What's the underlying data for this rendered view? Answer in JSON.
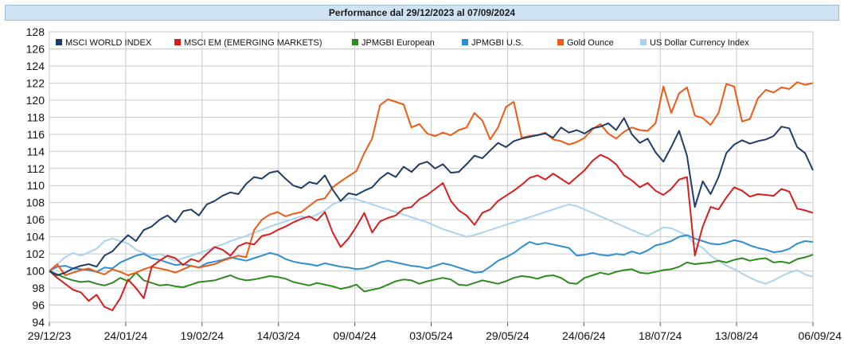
{
  "chart_data": {
    "type": "line",
    "title": "Performance dal 29/12/2023 al 07/09/2024",
    "xlabel": "",
    "ylabel": "",
    "ylim": [
      94,
      128
    ],
    "y_ticks": [
      94,
      96,
      98,
      100,
      102,
      104,
      106,
      108,
      110,
      112,
      114,
      116,
      118,
      120,
      122,
      124,
      126,
      128
    ],
    "x_ticks": [
      "29/12/23",
      "24/01/24",
      "19/02/24",
      "14/03/24",
      "09/04/24",
      "03/05/24",
      "29/05/24",
      "24/06/24",
      "18/07/24",
      "13/08/24",
      "06/09/24"
    ],
    "legend_position": "top-left",
    "grid": true,
    "series": [
      {
        "name": "MSCI WORLD INDEX",
        "color": "#1f3d6b",
        "values": [
          100,
          99.5,
          99.8,
          100.3,
          100.6,
          100.8,
          100.5,
          101.8,
          102.3,
          103.3,
          104.2,
          103.5,
          104.8,
          105.2,
          106,
          106.5,
          105.7,
          107,
          107.2,
          106.5,
          107.8,
          108.2,
          108.8,
          109.2,
          109,
          110.2,
          111,
          110.8,
          111.5,
          111.7,
          110.8,
          110,
          109.7,
          110.4,
          110.2,
          111.2,
          109.5,
          108.2,
          109.1,
          108.9,
          109.4,
          109.8,
          110.8,
          111.5,
          111,
          112.2,
          111.6,
          112.5,
          112.8,
          112,
          112.5,
          111.5,
          111.6,
          112.5,
          113.5,
          113.2,
          114.1,
          115,
          114.5,
          115.2,
          115.5,
          115.7,
          115.9,
          116.1,
          115.6,
          116.8,
          116.2,
          116.5,
          116.1,
          116.7,
          116.9,
          117.3,
          116.5,
          117.9,
          116,
          115,
          115.5,
          113.9,
          112.8,
          114.5,
          116.4,
          113.5,
          107.5,
          110.5,
          109,
          111,
          113.8,
          114.8,
          115.3,
          114.9,
          115.2,
          115.4,
          115.8,
          116.9,
          116.7,
          114.5,
          113.8,
          111.8
        ]
      },
      {
        "name": "MSCI EM (EMERGING MARKETS)",
        "color": "#d81d1d",
        "values": [
          100,
          99.2,
          98.5,
          97.8,
          97.5,
          96.5,
          97.2,
          95.8,
          95.4,
          96.8,
          99,
          98,
          96.8,
          100.5,
          101.2,
          101.8,
          101.5,
          100.7,
          101.4,
          101.1,
          102,
          102.8,
          102.5,
          101.8,
          102.9,
          103.3,
          103.1,
          104.1,
          104.3,
          104.8,
          105.2,
          105.7,
          106.1,
          106.4,
          105.9,
          106.9,
          104.5,
          102.8,
          103.8,
          105.2,
          106.8,
          104.5,
          105.8,
          106.2,
          106.5,
          107.3,
          107.5,
          108.4,
          108.9,
          109.6,
          110.3,
          108.2,
          107.1,
          106.5,
          105.4,
          106.8,
          107.2,
          108.2,
          108.8,
          109.4,
          110.1,
          110.9,
          111.2,
          110.7,
          111.4,
          110.8,
          110.2,
          111,
          111.8,
          112.9,
          113.6,
          113.2,
          112.5,
          111.2,
          110.6,
          109.8,
          110.3,
          109.4,
          108.9,
          109.6,
          110.7,
          111,
          101.8,
          105.2,
          107.5,
          107.2,
          108.6,
          109.8,
          109.4,
          108.7,
          109,
          108.9,
          108.8,
          109.6,
          109.3,
          107.3,
          107.1,
          106.8
        ]
      },
      {
        "name": "JPMGBI European",
        "color": "#2e8b1f",
        "values": [
          100,
          99.6,
          99.2,
          98.9,
          98.7,
          98.8,
          98.5,
          98.3,
          98.6,
          99.2,
          98.8,
          99.8,
          98.9,
          98.6,
          98.3,
          98.4,
          98.2,
          98.1,
          98.4,
          98.7,
          98.8,
          98.9,
          99.2,
          99.5,
          99.1,
          98.9,
          99,
          99.2,
          99.4,
          99.3,
          99.1,
          98.7,
          98.5,
          98.3,
          98.6,
          98.4,
          98.2,
          97.9,
          98.1,
          98.4,
          97.6,
          97.8,
          98,
          98.4,
          98.8,
          99,
          98.9,
          98.5,
          98.8,
          99,
          99.2,
          99,
          98.4,
          98.3,
          98.6,
          98.9,
          98.7,
          98.5,
          98.8,
          99.2,
          99.4,
          99.3,
          99.1,
          99.4,
          99.5,
          99.2,
          98.6,
          98.5,
          99.2,
          99.5,
          99.8,
          99.6,
          99.9,
          100.1,
          100.2,
          99.8,
          99.7,
          99.9,
          100.1,
          100.2,
          100.5,
          101,
          100.8,
          100.9,
          101,
          101.2,
          101,
          101.3,
          101.5,
          101.2,
          101.4,
          101.5,
          101,
          101.1,
          100.9,
          101.4,
          101.6,
          101.9
        ]
      },
      {
        "name": "JPMGBI U.S.",
        "color": "#2f8fd0",
        "values": [
          100,
          100.5,
          100.6,
          100.3,
          100.2,
          100.1,
          99.9,
          100.4,
          100.3,
          101,
          101.4,
          101.8,
          102,
          101.5,
          101.3,
          101,
          100.7,
          100.8,
          100.6,
          100.4,
          100.9,
          101.1,
          101.3,
          101.6,
          101.4,
          101.2,
          101.5,
          101.8,
          102.1,
          101.9,
          101.4,
          101.1,
          100.9,
          100.8,
          100.6,
          100.9,
          100.7,
          100.5,
          100.4,
          100.2,
          100.3,
          100.6,
          101,
          101.2,
          101,
          100.8,
          100.6,
          100.5,
          100.3,
          100.6,
          100.9,
          100.7,
          100.4,
          100.1,
          99.8,
          99.9,
          100.5,
          101.2,
          101.6,
          102.1,
          102.8,
          103.4,
          103.1,
          103.3,
          103.1,
          102.9,
          102.7,
          101.8,
          101.9,
          102.1,
          101.9,
          101.8,
          102,
          101.9,
          102.3,
          102,
          102.4,
          103,
          103.2,
          103.5,
          104,
          104.2,
          103.8,
          103.5,
          103.2,
          103.1,
          103.3,
          103.6,
          103.4,
          103,
          102.7,
          102.5,
          102.2,
          102.3,
          102.6,
          103.2,
          103.5,
          103.4
        ]
      },
      {
        "name": "Gold Ounce",
        "color": "#ef5a14",
        "values": [
          100,
          100.8,
          99.5,
          99.8,
          100.1,
          100.3,
          99.9,
          99.6,
          100.2,
          99.9,
          99.5,
          99.8,
          100.2,
          100.5,
          100.3,
          100.1,
          99.8,
          100.2,
          100.6,
          100.4,
          100.6,
          100.8,
          101.2,
          101.5,
          101.8,
          101.6,
          104.8,
          106,
          106.6,
          106.9,
          106.4,
          106.7,
          106.9,
          107.6,
          108.3,
          108.5,
          109.8,
          110.5,
          111.1,
          111.7,
          113.8,
          115.5,
          119.4,
          120.1,
          119.8,
          119.5,
          116.8,
          117.2,
          116.1,
          115.8,
          116.2,
          115.9,
          116.5,
          116.8,
          118.5,
          117.6,
          115.4,
          116.8,
          119.2,
          119.8,
          115.6,
          115.8,
          115.9,
          116.2,
          115.4,
          115.2,
          114.8,
          115.1,
          115.6,
          116.6,
          117.2,
          116.1,
          115.5,
          116.3,
          116.8,
          116.5,
          116.4,
          117.3,
          121.6,
          118.5,
          120.8,
          121.5,
          118.2,
          117.9,
          117.1,
          118.5,
          121.9,
          121.6,
          117.5,
          117.8,
          120.2,
          121.2,
          120.9,
          121.5,
          121.3,
          122.1,
          121.8,
          122
        ]
      },
      {
        "name": "US Dollar Currency Index",
        "color": "#a9d3f0",
        "values": [
          100,
          100.8,
          101.6,
          102.1,
          101.8,
          102.2,
          102.6,
          103.5,
          103.8,
          103.5,
          103.2,
          102.5,
          102.1,
          101.8,
          102,
          101.6,
          101.2,
          101.5,
          101.8,
          102.1,
          102.4,
          102.8,
          103.1,
          103.5,
          103.8,
          104.1,
          104.5,
          104.8,
          105.2,
          105.5,
          105.8,
          106.1,
          106.4,
          106.2,
          106.6,
          107.1,
          107.8,
          108.2,
          108.5,
          108.4,
          108.1,
          107.8,
          107.5,
          107.2,
          106.9,
          106.6,
          106.3,
          106,
          105.7,
          105.3,
          104.9,
          104.6,
          104.3,
          104,
          104.2,
          104.5,
          104.8,
          105.1,
          105.4,
          105.7,
          106,
          106.3,
          106.6,
          106.9,
          107.2,
          107.5,
          107.8,
          107.6,
          107.2,
          106.8,
          106.4,
          106,
          105.6,
          105.2,
          104.8,
          104.4,
          104.1,
          104.6,
          105.1,
          105,
          104.6,
          104.1,
          103.2,
          102.7,
          101.8,
          101.2,
          100.6,
          100.2,
          99.7,
          99.2,
          98.8,
          98.5,
          98.9,
          99.4,
          99.8,
          100.1,
          99.6,
          99.3
        ]
      }
    ]
  }
}
